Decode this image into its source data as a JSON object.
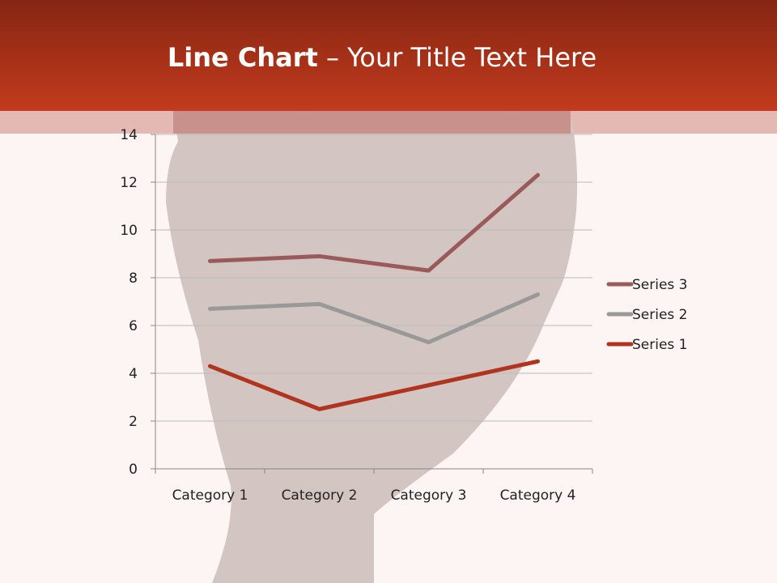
{
  "slide": {
    "title_bold": "Line Chart",
    "title_rest": " – Your Title Text Here"
  },
  "colors": {
    "header": "#b0341e",
    "band": "#e4b8b3",
    "background": "#fdf5f3"
  },
  "chart_data": {
    "type": "line",
    "stacked": true,
    "categories": [
      "Category 1",
      "Category 2",
      "Category 3",
      "Category 4"
    ],
    "series": [
      {
        "name": "Series 1",
        "values": [
          4.3,
          2.5,
          3.5,
          4.5
        ],
        "color": "#b0341e"
      },
      {
        "name": "Series 2",
        "values": [
          2.4,
          4.4,
          1.8,
          2.8
        ],
        "color": "#999999"
      },
      {
        "name": "Series 3",
        "values": [
          2,
          2,
          3,
          5
        ],
        "color": "#9b5a5a"
      }
    ],
    "yticks": [
      "0",
      "2",
      "4",
      "6",
      "8",
      "10",
      "12",
      "14"
    ],
    "ylim": [
      0,
      14
    ],
    "grid": true,
    "legend": "right"
  }
}
